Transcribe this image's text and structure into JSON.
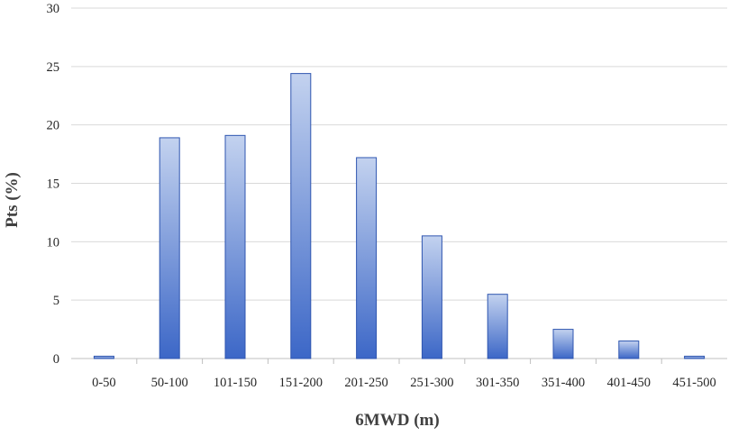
{
  "chart_data": {
    "type": "bar",
    "categories": [
      "0-50",
      "50-100",
      "101-150",
      "151-200",
      "201-250",
      "251-300",
      "301-350",
      "351-400",
      "401-450",
      "451-500"
    ],
    "values": [
      0.2,
      18.9,
      19.1,
      24.4,
      17.2,
      10.5,
      5.5,
      2.5,
      1.5,
      0.2
    ],
    "title": "",
    "xlabel": "6MWD (m)",
    "ylabel": "Pts (%)",
    "ylim": [
      0,
      30
    ],
    "yticks": [
      "0",
      "5",
      "10",
      "15",
      "20",
      "25",
      "30"
    ],
    "grid": true,
    "bar_color_top": "#c3d2ef",
    "bar_color_bottom": "#3c67c7",
    "bar_border": "#2f56b0"
  }
}
